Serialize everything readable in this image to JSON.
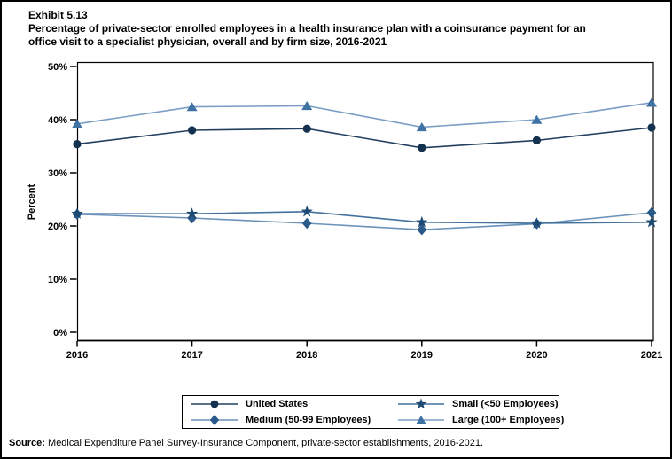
{
  "page": {
    "exhibit_label": "Exhibit 5.13",
    "title_line1": "Percentage of private-sector enrolled employees in a health insurance plan with a coinsurance payment for an",
    "title_line2": "office visit to a specialist physician, overall and by firm size, 2016-2021",
    "source_label": "Source:",
    "source_text": " Medical Expenditure Panel Survey-Insurance Component, private-sector establishments, 2016-2021."
  },
  "chart_data": {
    "type": "line",
    "title": "Exhibit 5.13 Percentage of private-sector enrolled employees in a health insurance plan with a coinsurance payment for an office visit to a specialist physician, overall and by firm size, 2016-2021",
    "x": [
      2016,
      2017,
      2018,
      2019,
      2020,
      2021
    ],
    "x_labels": [
      "2016",
      "2017",
      "2018",
      "2019",
      "2020",
      "2021"
    ],
    "xlabel": "",
    "ylabel": "Percent",
    "ylim": [
      0,
      50
    ],
    "yticks": [
      0,
      10,
      20,
      30,
      40,
      50
    ],
    "ytick_labels": [
      "0%",
      "10%",
      "20%",
      "30%",
      "40%",
      "50%"
    ],
    "grid": false,
    "legend_position": "bottom",
    "series": [
      {
        "name": "United States",
        "marker": "circle",
        "color": "#14314f",
        "line_color": "#22405e",
        "values": [
          35.4,
          38.0,
          38.3,
          34.7,
          36.1,
          38.5
        ]
      },
      {
        "name": "Small (<50 Employees)",
        "marker": "star",
        "color": "#1c4a72",
        "line_color": "#41719c",
        "values": [
          22.3,
          22.3,
          22.7,
          20.7,
          20.5,
          20.7
        ]
      },
      {
        "name": "Medium (50-99 Employees)",
        "marker": "diamond",
        "color": "#2a5a8a",
        "line_color": "#6b92ba",
        "values": [
          22.2,
          21.5,
          20.5,
          19.3,
          20.4,
          22.5
        ]
      },
      {
        "name": "Large (100+ Employees)",
        "marker": "triangle",
        "color": "#3f72a5",
        "line_color": "#7b9dc5",
        "values": [
          39.2,
          42.4,
          42.6,
          38.6,
          40.0,
          43.2
        ]
      }
    ]
  }
}
